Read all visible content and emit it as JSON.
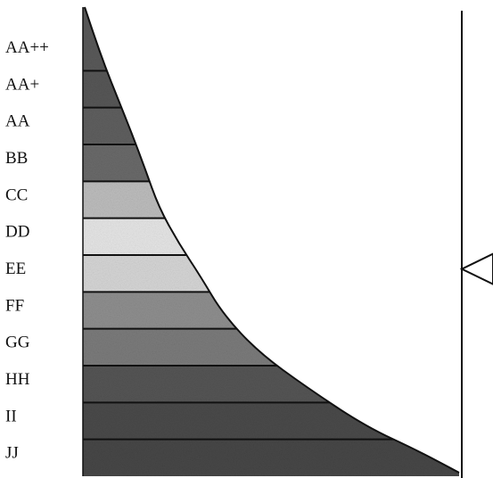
{
  "grades": [
    {
      "label": "AA++",
      "fill": "#5a5a5a"
    },
    {
      "label": "AA+",
      "fill": "#575757"
    },
    {
      "label": "AA",
      "fill": "#5f5f5f"
    },
    {
      "label": "BB",
      "fill": "#6a6a6a"
    },
    {
      "label": "CC",
      "fill": "#bdbdbd"
    },
    {
      "label": "DD",
      "fill": "#e6e6e6"
    },
    {
      "label": "EE",
      "fill": "#d6d6d6"
    },
    {
      "label": "FF",
      "fill": "#8f8f8f"
    },
    {
      "label": "GG",
      "fill": "#7b7b7b"
    },
    {
      "label": "HH",
      "fill": "#555555"
    },
    {
      "label": "II",
      "fill": "#4a4a4a"
    },
    {
      "label": "JJ",
      "fill": "#474747"
    }
  ],
  "marker_grade": "EE",
  "colors": {
    "outline": "#111111",
    "marker_fill": "#ffffff"
  }
}
